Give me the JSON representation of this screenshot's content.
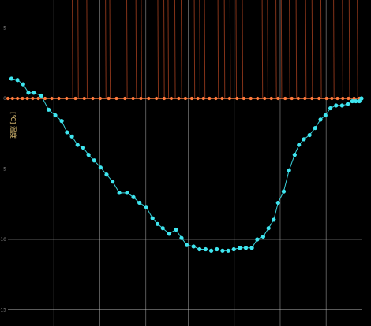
{
  "chart_data": {
    "type": "line",
    "title": "",
    "xlabel": "",
    "ylabel": "[℃] 温度",
    "xlim": [
      0,
      100
    ],
    "ylim": [
      -15,
      7
    ],
    "y_ticks": [
      5,
      0,
      -5,
      -10,
      -15
    ],
    "y_tick_labels": [
      "5",
      "0",
      "-5",
      "-10",
      "-15"
    ],
    "grid": true,
    "colors": {
      "background": "#000000",
      "grid": "#c8c8c8",
      "temperature_series": "#3fe6f0",
      "zero_series": "#ff7a3c",
      "spikes": "#9a3b1c"
    },
    "series": [
      {
        "key": "temperature",
        "points": [
          [
            1,
            1.4
          ],
          [
            2.7,
            1.3
          ],
          [
            4.3,
            1.0
          ],
          [
            5.8,
            0.4
          ],
          [
            7.3,
            0.4
          ],
          [
            9.4,
            0.2
          ],
          [
            11.5,
            -0.8
          ],
          [
            13.4,
            -1.2
          ],
          [
            15.2,
            -1.6
          ],
          [
            16.7,
            -2.4
          ],
          [
            18.1,
            -2.7
          ],
          [
            19.7,
            -3.3
          ],
          [
            21.3,
            -3.5
          ],
          [
            22.8,
            -4.0
          ],
          [
            24.4,
            -4.4
          ],
          [
            26.2,
            -4.9
          ],
          [
            27.9,
            -5.4
          ],
          [
            29.6,
            -5.9
          ],
          [
            31.5,
            -6.7
          ],
          [
            33.7,
            -6.7
          ],
          [
            35.5,
            -7.0
          ],
          [
            37.2,
            -7.4
          ],
          [
            39.1,
            -7.7
          ],
          [
            40.9,
            -8.5
          ],
          [
            42.3,
            -8.9
          ],
          [
            43.8,
            -9.2
          ],
          [
            45.6,
            -9.6
          ],
          [
            47.5,
            -9.3
          ],
          [
            49.1,
            -9.9
          ],
          [
            50.6,
            -10.4
          ],
          [
            52.5,
            -10.5
          ],
          [
            54.2,
            -10.7
          ],
          [
            55.9,
            -10.7
          ],
          [
            57.5,
            -10.8
          ],
          [
            59.1,
            -10.7
          ],
          [
            60.7,
            -10.8
          ],
          [
            62.3,
            -10.8
          ],
          [
            63.9,
            -10.7
          ],
          [
            65.6,
            -10.6
          ],
          [
            67.3,
            -10.6
          ],
          [
            69.0,
            -10.6
          ],
          [
            70.5,
            -10.0
          ],
          [
            72.2,
            -9.8
          ],
          [
            73.7,
            -9.2
          ],
          [
            75.2,
            -8.6
          ],
          [
            76.4,
            -7.4
          ],
          [
            78.0,
            -6.6
          ],
          [
            79.5,
            -5.1
          ],
          [
            81.1,
            -4.0
          ],
          [
            82.3,
            -3.3
          ],
          [
            83.7,
            -2.9
          ],
          [
            85.3,
            -2.6
          ],
          [
            86.9,
            -2.1
          ],
          [
            88.4,
            -1.5
          ],
          [
            89.8,
            -1.2
          ],
          [
            91.2,
            -0.7
          ],
          [
            92.8,
            -0.5
          ],
          [
            94.5,
            -0.5
          ],
          [
            96.1,
            -0.4
          ],
          [
            97.4,
            -0.2
          ],
          [
            98.4,
            -0.2
          ],
          [
            99.4,
            -0.2
          ],
          [
            100,
            0
          ]
        ]
      },
      {
        "key": "zero_level",
        "points": [
          [
            0,
            0
          ],
          [
            1.3,
            0
          ],
          [
            2.7,
            0
          ],
          [
            4.1,
            0
          ],
          [
            5.5,
            0
          ],
          [
            7.0,
            0
          ],
          [
            8.6,
            0
          ],
          [
            10.5,
            0
          ],
          [
            12.4,
            0
          ],
          [
            14.4,
            0
          ],
          [
            16.6,
            0
          ],
          [
            19.1,
            0
          ],
          [
            21.6,
            0
          ],
          [
            24.0,
            0
          ],
          [
            26.1,
            0
          ],
          [
            28.5,
            0
          ],
          [
            30.7,
            0
          ],
          [
            33.1,
            0
          ],
          [
            35.4,
            0
          ],
          [
            37.6,
            0
          ],
          [
            39.8,
            0
          ],
          [
            42.0,
            0
          ],
          [
            44.2,
            0
          ],
          [
            46.2,
            0
          ],
          [
            48.3,
            0
          ],
          [
            50.2,
            0
          ],
          [
            52.0,
            0
          ],
          [
            53.7,
            0
          ],
          [
            55.3,
            0
          ],
          [
            57.0,
            0
          ],
          [
            58.8,
            0
          ],
          [
            60.6,
            0
          ],
          [
            62.7,
            0
          ],
          [
            64.8,
            0
          ],
          [
            66.7,
            0
          ],
          [
            68.7,
            0
          ],
          [
            70.6,
            0
          ],
          [
            72.6,
            0
          ],
          [
            74.5,
            0
          ],
          [
            76.4,
            0
          ],
          [
            78.4,
            0
          ],
          [
            80.3,
            0
          ],
          [
            82.1,
            0
          ],
          [
            84.0,
            0
          ],
          [
            86.0,
            0
          ],
          [
            88.0,
            0
          ],
          [
            90.1,
            0
          ],
          [
            91.6,
            0
          ],
          [
            93.2,
            0
          ],
          [
            94.7,
            0
          ],
          [
            96.3,
            0
          ],
          [
            97.9,
            0
          ],
          [
            99.4,
            0
          ]
        ]
      }
    ],
    "spikes_x": [
      18.2,
      19.8,
      22.3,
      27.6,
      28.8,
      33.6,
      36.2,
      37.7,
      42.4,
      44.1,
      45.3,
      47.2,
      49.0,
      52.7,
      54.2,
      55.6,
      59.4,
      61.2,
      62.8,
      64.5,
      66.3,
      71.9,
      73.4,
      75.8,
      77.3,
      79.6,
      81.5,
      84.2,
      86.0,
      88.5,
      92.1,
      94.6,
      96.5,
      98.8
    ]
  }
}
